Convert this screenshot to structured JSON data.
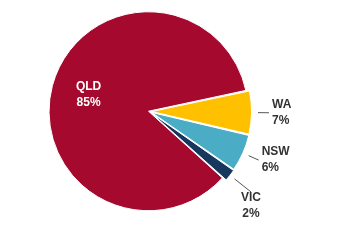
{
  "chart_data": {
    "type": "pie",
    "categories": [
      "WA",
      "NSW",
      "VIC",
      "QLD"
    ],
    "values": [
      7,
      6,
      2,
      85
    ],
    "value_labels": [
      "7%",
      "6%",
      "2%",
      "85%"
    ],
    "colors": [
      "#ffc000",
      "#4bacc6",
      "#17375e",
      "#a50a2e"
    ],
    "data_labels": true
  }
}
